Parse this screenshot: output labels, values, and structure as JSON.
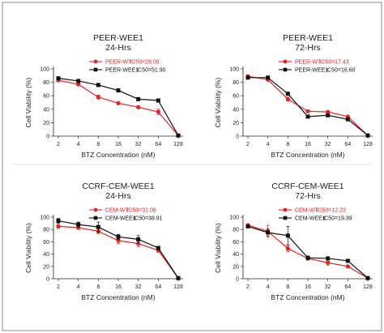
{
  "colors": {
    "wt": "#e8231f",
    "wee1": "#111111",
    "frame": "#8a8a8a",
    "axis": "#222222"
  },
  "chart_data": [
    {
      "type": "line",
      "title": "PEER-WEE1",
      "subtitle": "24-Hrs",
      "xlabel": "BTZ Concentration (nM)",
      "ylabel": "Cell Viability (%)",
      "x": [
        2,
        4,
        8,
        16,
        32,
        64,
        128
      ],
      "x_scale": "log2",
      "ylim": [
        0,
        100
      ],
      "yticks": [
        0,
        20,
        40,
        60,
        80,
        100
      ],
      "legend_position": "top-right",
      "series": [
        {
          "name": "PEER-WT",
          "ic50": "IC50=28.08",
          "color": "#e8231f",
          "marker": "circle",
          "values": [
            83,
            77,
            58,
            49,
            43,
            36,
            1
          ],
          "err": [
            2,
            2,
            3,
            2,
            2,
            4,
            0
          ]
        },
        {
          "name": "PEER-WEE1",
          "ic50": "IC50=51.90",
          "color": "#111111",
          "marker": "square",
          "values": [
            86,
            82,
            76,
            68,
            55,
            53,
            1
          ],
          "err": [
            1,
            1,
            1,
            2,
            1,
            1,
            0
          ]
        }
      ]
    },
    {
      "type": "line",
      "title": "PEER-WEE1",
      "subtitle": "72-Hrs",
      "xlabel": "BTZ Concentration (nM)",
      "ylabel": "Cell Viability (%)",
      "x": [
        2,
        4,
        8,
        16,
        32,
        64,
        128
      ],
      "x_scale": "log2",
      "ylim": [
        0,
        100
      ],
      "yticks": [
        0,
        20,
        40,
        60,
        80,
        100
      ],
      "legend_position": "top-right",
      "series": [
        {
          "name": "PEER-WT",
          "ic50": "IC50=17.43",
          "color": "#e8231f",
          "marker": "circle",
          "values": [
            89,
            84,
            55,
            37,
            36,
            29,
            1
          ],
          "err": [
            1,
            2,
            3,
            1,
            1,
            2,
            0
          ]
        },
        {
          "name": "PEER-WEE1",
          "ic50": "IC50=16.60",
          "color": "#111111",
          "marker": "square",
          "values": [
            87,
            87,
            63,
            29,
            31,
            25,
            1
          ],
          "err": [
            1,
            1,
            2,
            1,
            1,
            1,
            0
          ]
        }
      ]
    },
    {
      "type": "line",
      "title": "CCRF-CEM-WEE1",
      "subtitle": "24-Hrs",
      "xlabel": "BTZ Concentration (nM)",
      "ylabel": "Cell Viability (%)",
      "x": [
        2,
        4,
        8,
        16,
        32,
        64,
        128
      ],
      "x_scale": "log2",
      "ylim": [
        0,
        100
      ],
      "yticks": [
        0,
        20,
        40,
        60,
        80,
        100
      ],
      "legend_position": "top-right",
      "series": [
        {
          "name": "CEM-WT",
          "ic50": "IC50=31.08",
          "color": "#e8231f",
          "marker": "circle",
          "values": [
            85,
            83,
            77,
            62,
            57,
            46,
            1
          ],
          "err": [
            3,
            3,
            4,
            5,
            5,
            3,
            0
          ]
        },
        {
          "name": "CEM-WEE1",
          "ic50": "IC50=38.91",
          "color": "#111111",
          "marker": "square",
          "values": [
            94,
            88,
            84,
            68,
            64,
            50,
            1
          ],
          "err": [
            4,
            4,
            8,
            4,
            6,
            2,
            0
          ]
        }
      ]
    },
    {
      "type": "line",
      "title": "CCRF-CEM-WEE1",
      "subtitle": "72-Hrs",
      "xlabel": "BTZ Concentration (nM)",
      "ylabel": "Cell Viability (%)",
      "x": [
        2,
        4,
        8,
        16,
        32,
        64,
        128
      ],
      "x_scale": "log2",
      "ylim": [
        0,
        100
      ],
      "yticks": [
        0,
        20,
        40,
        60,
        80,
        100
      ],
      "legend_position": "top-right",
      "series": [
        {
          "name": "CEM-WT",
          "ic50": "IC50=12.23",
          "color": "#e8231f",
          "marker": "circle",
          "values": [
            87,
            77,
            49,
            33,
            26,
            20,
            1
          ],
          "err": [
            2,
            10,
            5,
            3,
            4,
            2,
            0
          ]
        },
        {
          "name": "CEM-WEE1",
          "ic50": "IC50=19.39",
          "color": "#111111",
          "marker": "square",
          "values": [
            85,
            75,
            70,
            34,
            33,
            29,
            1
          ],
          "err": [
            2,
            6,
            15,
            3,
            2,
            1,
            0
          ]
        }
      ]
    }
  ]
}
